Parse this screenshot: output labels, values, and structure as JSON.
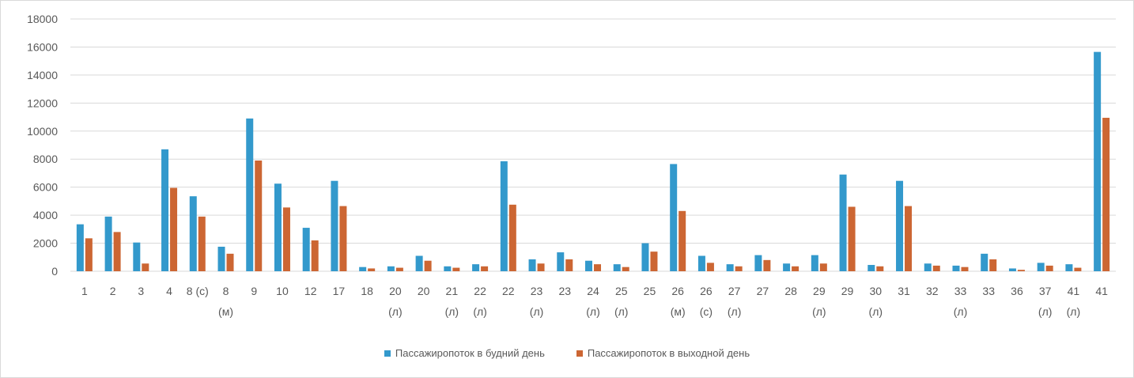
{
  "chart_data": {
    "type": "bar",
    "title": "",
    "xlabel": "",
    "ylabel": "",
    "ylim": [
      0,
      18000
    ],
    "yticks": [
      "0",
      "2000",
      "4000",
      "6000",
      "8000",
      "10000",
      "12000",
      "14000",
      "16000",
      "18000"
    ],
    "grid": true,
    "legend_position": "bottom",
    "categories": [
      [
        "1",
        ""
      ],
      [
        "2",
        ""
      ],
      [
        "3",
        ""
      ],
      [
        "4",
        ""
      ],
      [
        "8 (с)",
        ""
      ],
      [
        "8",
        "(м)"
      ],
      [
        "9",
        ""
      ],
      [
        "10",
        ""
      ],
      [
        "12",
        ""
      ],
      [
        "17",
        ""
      ],
      [
        "18",
        ""
      ],
      [
        "20",
        "(л)"
      ],
      [
        "20",
        ""
      ],
      [
        "21",
        "(л)"
      ],
      [
        "22",
        "(л)"
      ],
      [
        "22",
        ""
      ],
      [
        "23",
        "(л)"
      ],
      [
        "23",
        ""
      ],
      [
        "24",
        "(л)"
      ],
      [
        "25",
        "(л)"
      ],
      [
        "25",
        ""
      ],
      [
        "26",
        "(м)"
      ],
      [
        "26",
        "(с)"
      ],
      [
        "27",
        "(л)"
      ],
      [
        "27",
        ""
      ],
      [
        "28",
        ""
      ],
      [
        "29",
        "(л)"
      ],
      [
        "29",
        ""
      ],
      [
        "30",
        "(л)"
      ],
      [
        "31",
        ""
      ],
      [
        "32",
        ""
      ],
      [
        "33",
        "(л)"
      ],
      [
        "33",
        ""
      ],
      [
        "36",
        ""
      ],
      [
        "37",
        "(л)"
      ],
      [
        "41",
        "(л)"
      ],
      [
        "41",
        ""
      ]
    ],
    "series": [
      {
        "name": "Пассажиропоток в будний день",
        "color": "#3399CC",
        "values": [
          3350,
          3900,
          2050,
          8700,
          5350,
          1750,
          10900,
          6250,
          3100,
          6450,
          300,
          350,
          1100,
          350,
          500,
          7850,
          850,
          1350,
          750,
          500,
          2000,
          7650,
          1100,
          500,
          1150,
          550,
          1150,
          6900,
          450,
          6450,
          550,
          400,
          1250,
          200,
          600,
          500,
          15650
        ]
      },
      {
        "name": "Пассажиропоток в выходной день",
        "color": "#CC6633",
        "values": [
          2350,
          2800,
          550,
          5950,
          3900,
          1250,
          7900,
          4550,
          2200,
          4650,
          200,
          250,
          750,
          250,
          350,
          4750,
          550,
          850,
          500,
          300,
          1400,
          4300,
          600,
          350,
          800,
          350,
          550,
          4600,
          350,
          4650,
          400,
          300,
          850,
          100,
          400,
          250,
          10950
        ]
      }
    ]
  }
}
